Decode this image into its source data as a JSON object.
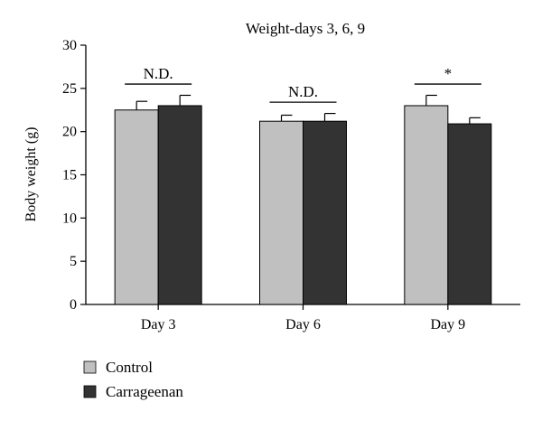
{
  "chart_data": {
    "type": "bar",
    "title": "Weight-days 3, 6, 9",
    "xlabel": "",
    "ylabel": "Body weight (g)",
    "ylim": [
      0,
      30
    ],
    "yticks": [
      0,
      5,
      10,
      15,
      20,
      25,
      30
    ],
    "categories": [
      "Day 3",
      "Day 6",
      "Day 9"
    ],
    "series": [
      {
        "name": "Control",
        "values": [
          22.5,
          21.2,
          23.0
        ],
        "errors": [
          1.0,
          0.7,
          1.2
        ],
        "color": "#c0c0c0"
      },
      {
        "name": "Carrageenan",
        "values": [
          23.0,
          21.2,
          20.9
        ],
        "errors": [
          1.2,
          0.9,
          0.7
        ],
        "color": "#333333"
      }
    ],
    "annotations": [
      {
        "category": "Day 3",
        "label": "N.D.",
        "bracket_at": 25.5
      },
      {
        "category": "Day 6",
        "label": "N.D.",
        "bracket_at": 23.4
      },
      {
        "category": "Day 9",
        "label": "*",
        "bracket_at": 25.5
      }
    ],
    "legend_position": "bottom-left",
    "grid": false
  }
}
